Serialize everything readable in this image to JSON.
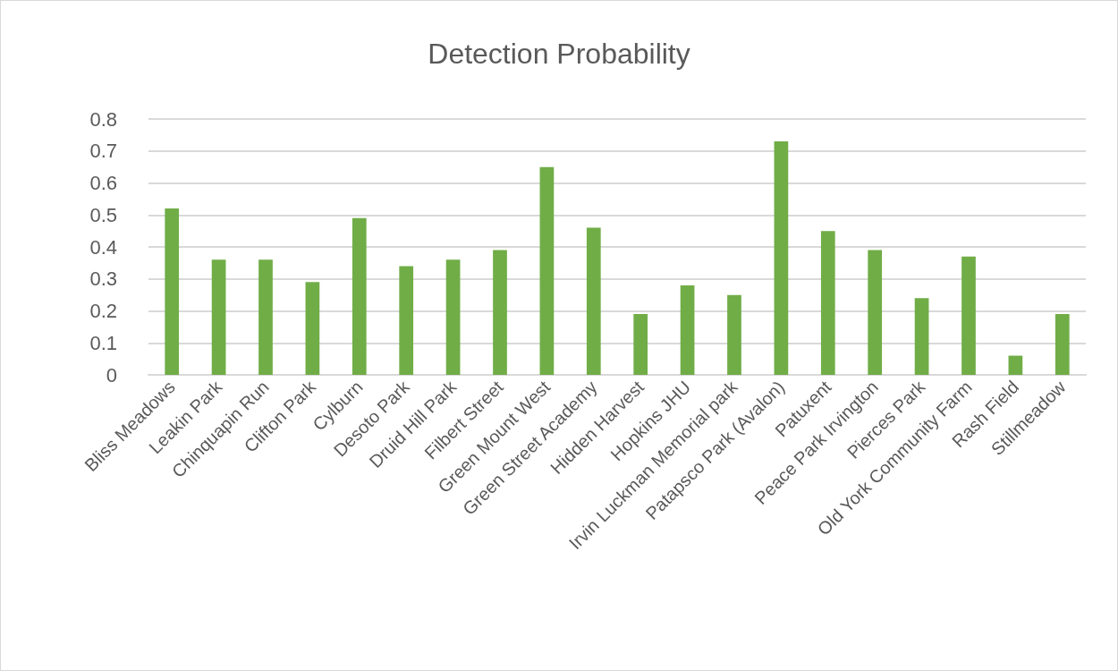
{
  "chart_data": {
    "type": "bar",
    "title": "Detection Probability",
    "categories": [
      "Bliss Meadows",
      "Leakin Park",
      "Chinquapin Run",
      "Clifton Park",
      "Cylburn",
      "Desoto Park",
      "Druid Hill Park",
      "Filbert Street",
      "Green Mount West",
      "Green Street Academy",
      "Hidden Harvest",
      "Hopkins JHU",
      "Irvin Luckman Memorial park",
      "Patapsco Park (Avalon)",
      "Patuxent",
      "Peace Park Irvington",
      "Pierces Park",
      "Old York Community Farm",
      "Rash Field",
      "Stillmeadow"
    ],
    "values": [
      0.52,
      0.36,
      0.36,
      0.29,
      0.49,
      0.34,
      0.36,
      0.39,
      0.65,
      0.46,
      0.19,
      0.28,
      0.25,
      0.73,
      0.45,
      0.39,
      0.24,
      0.37,
      0.06,
      0.19
    ],
    "color": "#70ad47",
    "ylim": [
      0,
      0.8
    ],
    "yticks": [
      0,
      0.1,
      0.2,
      0.3,
      0.4,
      0.5,
      0.6,
      0.7,
      0.8
    ],
    "grid": "y"
  }
}
